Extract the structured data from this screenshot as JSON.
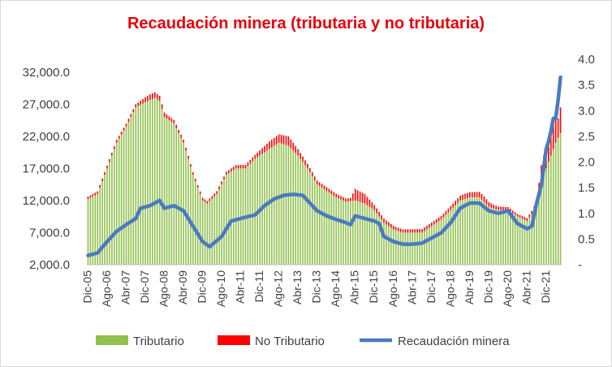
{
  "chart_data": {
    "type": "bar",
    "title": "Recaudación minera (tributaria y no tributaria)",
    "stacked": true,
    "colors": {
      "tributario": "#92c050",
      "no_tributario": "#ff0000",
      "line": "#4a7bbf"
    },
    "y_left": {
      "ylim": [
        2000,
        34000
      ],
      "ticks": [
        "2,000.0",
        "7,000.0",
        "12,000.0",
        "17,000.0",
        "22,000.0",
        "27,000.0",
        "32,000.0"
      ],
      "tick_values": [
        2000,
        7000,
        12000,
        17000,
        22000,
        27000,
        32000
      ]
    },
    "y_right": {
      "ylim": [
        0,
        4.0
      ],
      "ticks": [
        "-",
        "0.5",
        "1.0",
        "1.5",
        "2.0",
        "2.5",
        "3.0",
        "3.5",
        "4.0"
      ],
      "tick_values": [
        0,
        0.5,
        1.0,
        1.5,
        2.0,
        2.5,
        3.0,
        3.5,
        4.0
      ]
    },
    "x_ticks": [
      "Dic-05",
      "Ago-06",
      "Abr-07",
      "Dic-07",
      "Ago-08",
      "Abr-09",
      "Dic-09",
      "Ago-10",
      "Abr-11",
      "Dic-11",
      "Ago-12",
      "Abr-13",
      "Dic-13",
      "Ago-14",
      "Abr-15",
      "Dic-15",
      "Ago-16",
      "Abr-17",
      "Dic-17",
      "Ago-18",
      "Abr-19",
      "Dic-19",
      "Ago-20",
      "Abr-21",
      "Dic-21"
    ],
    "months_between_ticks": 8,
    "n_points": 199,
    "series": [
      {
        "name": "Tributario",
        "key": "tributario",
        "axis": "left",
        "kind": "bar",
        "anchors": [
          [
            0,
            12200
          ],
          [
            4,
            13000
          ],
          [
            8,
            17000
          ],
          [
            12,
            21000
          ],
          [
            16,
            23500
          ],
          [
            20,
            26500
          ],
          [
            24,
            27300
          ],
          [
            28,
            28000
          ],
          [
            30,
            27500
          ],
          [
            32,
            25000
          ],
          [
            36,
            24000
          ],
          [
            40,
            21000
          ],
          [
            44,
            16000
          ],
          [
            48,
            12000
          ],
          [
            50,
            11500
          ],
          [
            54,
            13000
          ],
          [
            58,
            16000
          ],
          [
            62,
            17000
          ],
          [
            66,
            17000
          ],
          [
            70,
            18500
          ],
          [
            74,
            19500
          ],
          [
            78,
            20500
          ],
          [
            80,
            21000
          ],
          [
            84,
            20500
          ],
          [
            88,
            19000
          ],
          [
            92,
            17000
          ],
          [
            96,
            14500
          ],
          [
            100,
            13500
          ],
          [
            104,
            12500
          ],
          [
            108,
            11800
          ],
          [
            112,
            12000
          ],
          [
            116,
            11500
          ],
          [
            120,
            10500
          ],
          [
            124,
            8500
          ],
          [
            128,
            7500
          ],
          [
            132,
            7000
          ],
          [
            136,
            7000
          ],
          [
            140,
            7000
          ],
          [
            144,
            8000
          ],
          [
            148,
            9000
          ],
          [
            152,
            10500
          ],
          [
            156,
            12000
          ],
          [
            160,
            12500
          ],
          [
            164,
            12500
          ],
          [
            168,
            11000
          ],
          [
            172,
            10500
          ],
          [
            176,
            10500
          ],
          [
            180,
            9500
          ],
          [
            184,
            8800
          ],
          [
            188,
            11000
          ],
          [
            190,
            15000
          ],
          [
            192,
            17000
          ],
          [
            194,
            19000
          ],
          [
            196,
            21000
          ],
          [
            198,
            22500
          ]
        ]
      },
      {
        "name": "No Tributario",
        "key": "no_tributario",
        "axis": "left",
        "kind": "bar",
        "anchors": [
          [
            0,
            400
          ],
          [
            20,
            500
          ],
          [
            26,
            900
          ],
          [
            30,
            800
          ],
          [
            34,
            600
          ],
          [
            44,
            400
          ],
          [
            60,
            500
          ],
          [
            70,
            600
          ],
          [
            76,
            1200
          ],
          [
            80,
            1300
          ],
          [
            84,
            1500
          ],
          [
            88,
            1000
          ],
          [
            92,
            700
          ],
          [
            96,
            600
          ],
          [
            110,
            500
          ],
          [
            112,
            1800
          ],
          [
            116,
            1500
          ],
          [
            120,
            800
          ],
          [
            130,
            500
          ],
          [
            150,
            600
          ],
          [
            158,
            800
          ],
          [
            162,
            800
          ],
          [
            166,
            900
          ],
          [
            170,
            600
          ],
          [
            180,
            400
          ],
          [
            186,
            500
          ],
          [
            188,
            1000
          ],
          [
            190,
            2500
          ],
          [
            192,
            3500
          ],
          [
            194,
            4000
          ],
          [
            196,
            3500
          ],
          [
            197,
            3000
          ],
          [
            198,
            4000
          ]
        ]
      },
      {
        "name": "Recaudación minera",
        "key": "recaudacion",
        "axis": "right",
        "kind": "line",
        "anchors": [
          [
            0,
            0.18
          ],
          [
            4,
            0.23
          ],
          [
            8,
            0.45
          ],
          [
            12,
            0.65
          ],
          [
            16,
            0.78
          ],
          [
            20,
            0.9
          ],
          [
            22,
            1.1
          ],
          [
            26,
            1.15
          ],
          [
            28,
            1.2
          ],
          [
            30,
            1.25
          ],
          [
            32,
            1.1
          ],
          [
            36,
            1.15
          ],
          [
            40,
            1.05
          ],
          [
            44,
            0.75
          ],
          [
            48,
            0.45
          ],
          [
            51,
            0.35
          ],
          [
            56,
            0.55
          ],
          [
            60,
            0.85
          ],
          [
            64,
            0.9
          ],
          [
            70,
            0.97
          ],
          [
            74,
            1.15
          ],
          [
            78,
            1.28
          ],
          [
            82,
            1.35
          ],
          [
            86,
            1.37
          ],
          [
            90,
            1.35
          ],
          [
            96,
            1.05
          ],
          [
            100,
            0.95
          ],
          [
            104,
            0.88
          ],
          [
            108,
            0.82
          ],
          [
            110,
            0.78
          ],
          [
            112,
            0.95
          ],
          [
            116,
            0.9
          ],
          [
            120,
            0.85
          ],
          [
            122,
            0.8
          ],
          [
            124,
            0.55
          ],
          [
            128,
            0.45
          ],
          [
            132,
            0.4
          ],
          [
            136,
            0.4
          ],
          [
            140,
            0.42
          ],
          [
            144,
            0.52
          ],
          [
            148,
            0.62
          ],
          [
            152,
            0.82
          ],
          [
            156,
            1.1
          ],
          [
            160,
            1.2
          ],
          [
            164,
            1.2
          ],
          [
            168,
            1.05
          ],
          [
            172,
            1.0
          ],
          [
            176,
            1.05
          ],
          [
            180,
            0.8
          ],
          [
            184,
            0.7
          ],
          [
            186,
            0.75
          ],
          [
            188,
            1.2
          ],
          [
            190,
            1.55
          ],
          [
            192,
            2.25
          ],
          [
            193,
            2.4
          ],
          [
            194,
            2.6
          ],
          [
            195,
            2.85
          ],
          [
            196,
            2.85
          ],
          [
            197,
            3.2
          ],
          [
            198,
            3.65
          ]
        ]
      }
    ],
    "legend": {
      "position": "bottom",
      "entries": [
        "Tributario",
        "No Tributario",
        "Recaudación minera"
      ]
    },
    "grid": false
  }
}
